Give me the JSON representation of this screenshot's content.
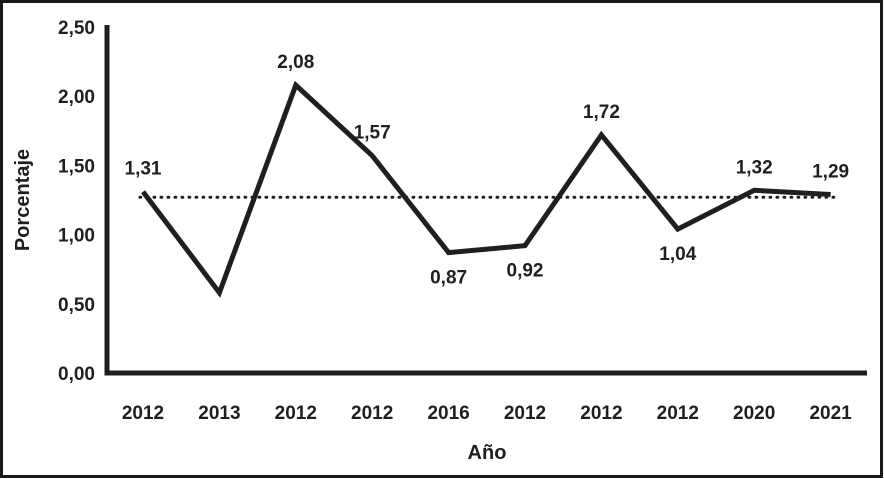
{
  "frame": {
    "background": "#ffffff",
    "border_color": "#1b181a",
    "border_width": 3
  },
  "chart_data": {
    "type": "line",
    "title": "",
    "xlabel": "Año",
    "ylabel": "Porcentaje",
    "categories": [
      "2012",
      "2013",
      "2012",
      "2012",
      "2016",
      "2012",
      "2012",
      "2012",
      "2020",
      "2021"
    ],
    "series": [
      {
        "name": "Porcentaje",
        "values": [
          1.31,
          0.58,
          2.08,
          1.57,
          0.87,
          0.92,
          1.72,
          1.04,
          1.32,
          1.29
        ],
        "point_labels": [
          "1,31",
          "",
          "2,08",
          "1,57",
          "0,87",
          "0,92",
          "1,72",
          "1,04",
          "1,32",
          "1,29"
        ],
        "label_positions": [
          "above",
          "none",
          "above",
          "above",
          "below",
          "below",
          "above",
          "below",
          "above",
          "above"
        ],
        "color": "#211e1f"
      }
    ],
    "y_ticks": [
      {
        "label": "0,00",
        "value": 0.0
      },
      {
        "label": "0,50",
        "value": 0.5
      },
      {
        "label": "1,00",
        "value": 1.0
      },
      {
        "label": "1,50",
        "value": 1.5
      },
      {
        "label": "2,00",
        "value": 2.0
      },
      {
        "label": "2,50",
        "value": 2.5
      }
    ],
    "ylim": [
      0,
      2.5
    ],
    "reference_line": {
      "value": 1.27,
      "style": "dotted",
      "color": "#211e1f"
    },
    "grid": false,
    "legend": false
  }
}
